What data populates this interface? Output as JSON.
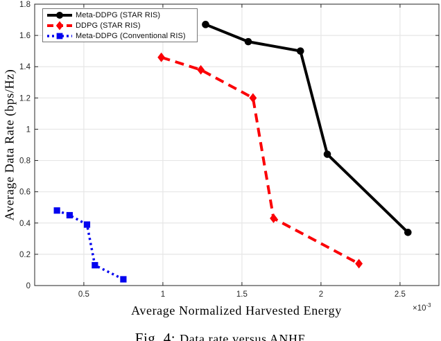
{
  "figure": {
    "caption_prefix": "Fig. 4:",
    "caption_text": "Data rate versus ANHE"
  },
  "chart_data": {
    "type": "line",
    "title": "",
    "xlabel": "Average Normalized Harvested Energy",
    "ylabel": "Average Data Rate (bps/Hz)",
    "x_scale_note": {
      "base": "×10",
      "exp": "-3"
    },
    "x_values_unit": "1e-3",
    "xlim": [
      0.189,
      2.746
    ],
    "ylim": [
      0,
      1.8
    ],
    "xticks": [
      0.5,
      1,
      1.5,
      2,
      2.5
    ],
    "xtick_labels": [
      "0.5",
      "1",
      "1.5",
      "2",
      "2.5"
    ],
    "yticks": [
      0,
      0.2,
      0.4,
      0.6,
      0.8,
      1,
      1.2,
      1.4,
      1.6,
      1.8
    ],
    "ytick_labels": [
      "0",
      "0.2",
      "0.4",
      "0.6",
      "0.8",
      "1",
      "1.2",
      "1.4",
      "1.6",
      "1.8"
    ],
    "grid": true,
    "legend_position": "top-left",
    "colors": {
      "axis": "#262626",
      "grid": "#e6e6e6",
      "legend_border": "#757575",
      "background": "#ffffff"
    },
    "series": [
      {
        "name": "Meta-DDPG (STAR RIS)",
        "color": "#000000",
        "line_style": "solid",
        "marker": "circle",
        "points": [
          [
            1.27,
            1.67
          ],
          [
            1.54,
            1.56
          ],
          [
            1.87,
            1.5
          ],
          [
            2.04,
            0.84
          ],
          [
            2.55,
            0.34
          ]
        ]
      },
      {
        "name": "DDPG (STAR RIS)",
        "color": "#fb0006",
        "line_style": "dashed",
        "marker": "diamond",
        "points": [
          [
            0.99,
            1.46
          ],
          [
            1.24,
            1.38
          ],
          [
            1.57,
            1.2
          ],
          [
            1.7,
            0.43
          ],
          [
            2.24,
            0.14
          ]
        ]
      },
      {
        "name": "Meta-DDPG (Conventional RIS)",
        "color": "#0404ef",
        "line_style": "dotted",
        "marker": "square",
        "points": [
          [
            0.33,
            0.48
          ],
          [
            0.41,
            0.45
          ],
          [
            0.52,
            0.39
          ],
          [
            0.57,
            0.13
          ],
          [
            0.75,
            0.04
          ]
        ]
      }
    ]
  }
}
